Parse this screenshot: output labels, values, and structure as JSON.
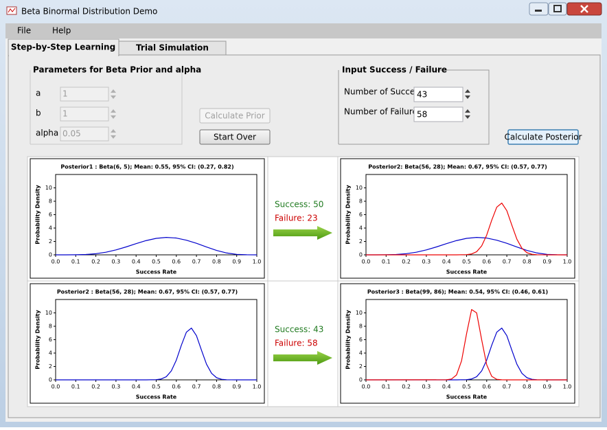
{
  "window": {
    "title": "Beta Binormal Distribution Demo"
  },
  "menu": [
    "File",
    "Help"
  ],
  "tabs": [
    "Step-by-Step Learning",
    "Trial Simulation"
  ],
  "prior_group": {
    "title": "Parameters for Beta Prior and alpha",
    "fields": [
      {
        "label": "a",
        "value": "1"
      },
      {
        "label": "b",
        "value": "1"
      },
      {
        "label": "alpha",
        "value": "0.05"
      }
    ]
  },
  "buttons": {
    "calculate_prior": "Calculate Prior",
    "start_over": "Start Over",
    "calculate_posterior": "Calculate Posterior"
  },
  "input_group": {
    "title": "Input Success / Failure",
    "fields": [
      {
        "label": "Number of Success",
        "value": "43"
      },
      {
        "label": "Number of Failure",
        "value": "58"
      }
    ]
  },
  "transitions": [
    {
      "success": "Success: 50",
      "failure": "Failure: 23"
    },
    {
      "success": "Success: 43",
      "failure": "Failure: 58"
    }
  ],
  "chart_data": [
    {
      "type": "line",
      "title": "Posterior1 : Beta(6, 5); Mean: 0.55, 95% CI: (0.27, 0.82)",
      "xlabel": "Success Rate",
      "ylabel": "Probability Density",
      "xlim": [
        0,
        1
      ],
      "ylim": [
        0,
        12
      ],
      "xticks": [
        {
          "value": 0,
          "label": "0.0"
        },
        0.1,
        0.2,
        0.3,
        0.4,
        0.5,
        0.6,
        0.7,
        0.8,
        0.9,
        {
          "value": 1,
          "label": "1.0"
        }
      ],
      "yticks": [
        0,
        2,
        4,
        6,
        8,
        10
      ],
      "series": [
        {
          "color": "#0000cc",
          "x": [
            0,
            0.05,
            0.1,
            0.15,
            0.2,
            0.25,
            0.3,
            0.35,
            0.4,
            0.45,
            0.5,
            0.55,
            0.6,
            0.65,
            0.7,
            0.75,
            0.8,
            0.85,
            0.9,
            0.95,
            1
          ],
          "values": [
            0,
            0,
            0.01,
            0.05,
            0.17,
            0.39,
            0.74,
            1.18,
            1.67,
            2.13,
            2.46,
            2.6,
            2.51,
            2.19,
            1.72,
            1.17,
            0.66,
            0.28,
            0.07,
            0.01,
            0
          ]
        }
      ]
    },
    {
      "type": "line",
      "title": "Posterior2: Beta(56, 28); Mean: 0.67, 95% CI: (0.57, 0.77)",
      "xlabel": "Success Rate",
      "ylabel": "Probability Density",
      "xlim": [
        0,
        1
      ],
      "ylim": [
        0,
        12
      ],
      "xticks": [
        {
          "value": 0,
          "label": "0.0"
        },
        0.1,
        0.2,
        0.3,
        0.4,
        0.5,
        0.6,
        0.7,
        0.8,
        0.9,
        {
          "value": 1,
          "label": "1.0"
        }
      ],
      "yticks": [
        0,
        2,
        4,
        6,
        8,
        10
      ],
      "series": [
        {
          "color": "#0000cc",
          "x": [
            0,
            0.05,
            0.1,
            0.15,
            0.2,
            0.25,
            0.3,
            0.35,
            0.4,
            0.45,
            0.5,
            0.55,
            0.6,
            0.65,
            0.7,
            0.75,
            0.8,
            0.85,
            0.9,
            0.95,
            1
          ],
          "values": [
            0,
            0,
            0.01,
            0.05,
            0.17,
            0.39,
            0.74,
            1.18,
            1.67,
            2.13,
            2.46,
            2.6,
            2.51,
            2.19,
            1.72,
            1.17,
            0.66,
            0.28,
            0.07,
            0.01,
            0
          ]
        },
        {
          "color": "#ee0000",
          "x": [
            0,
            0.45,
            0.5,
            0.525,
            0.55,
            0.575,
            0.6,
            0.625,
            0.65,
            0.675,
            0.7,
            0.725,
            0.75,
            0.775,
            0.8,
            0.825,
            0.85,
            0.9,
            1
          ],
          "values": [
            0,
            0,
            0.03,
            0.13,
            0.47,
            1.33,
            2.95,
            5.17,
            7.12,
            7.73,
            6.6,
            4.43,
            2.34,
            0.98,
            0.32,
            0.08,
            0.02,
            0,
            0
          ]
        }
      ]
    },
    {
      "type": "line",
      "title": "Posterior2 : Beta(56, 28); Mean: 0.67, 95% CI: (0.57, 0.77)",
      "xlabel": "Success Rate",
      "ylabel": "Probability Density",
      "xlim": [
        0,
        1
      ],
      "ylim": [
        0,
        12
      ],
      "xticks": [
        {
          "value": 0,
          "label": "0.0"
        },
        0.1,
        0.2,
        0.3,
        0.4,
        0.5,
        0.6,
        0.7,
        0.8,
        0.9,
        {
          "value": 1,
          "label": "1.0"
        }
      ],
      "yticks": [
        0,
        2,
        4,
        6,
        8,
        10
      ],
      "series": [
        {
          "color": "#0000cc",
          "x": [
            0,
            0.45,
            0.5,
            0.525,
            0.55,
            0.575,
            0.6,
            0.625,
            0.65,
            0.675,
            0.7,
            0.725,
            0.75,
            0.775,
            0.8,
            0.825,
            0.85,
            0.9,
            1
          ],
          "values": [
            0,
            0,
            0.03,
            0.13,
            0.47,
            1.33,
            2.95,
            5.17,
            7.12,
            7.73,
            6.6,
            4.43,
            2.34,
            0.98,
            0.32,
            0.08,
            0.02,
            0,
            0
          ]
        }
      ]
    },
    {
      "type": "line",
      "title": "Posterior3 : Beta(99, 86); Mean: 0.54, 95% CI: (0.46, 0.61)",
      "xlabel": "Success Rate",
      "ylabel": "Probability Density",
      "xlim": [
        0,
        1
      ],
      "ylim": [
        0,
        12
      ],
      "xticks": [
        {
          "value": 0,
          "label": "0.0"
        },
        0.1,
        0.2,
        0.3,
        0.4,
        0.5,
        0.6,
        0.7,
        0.8,
        0.9,
        {
          "value": 1,
          "label": "1.0"
        }
      ],
      "yticks": [
        0,
        2,
        4,
        6,
        8,
        10
      ],
      "series": [
        {
          "color": "#0000cc",
          "x": [
            0,
            0.45,
            0.5,
            0.525,
            0.55,
            0.575,
            0.6,
            0.625,
            0.65,
            0.675,
            0.7,
            0.725,
            0.75,
            0.775,
            0.8,
            0.825,
            0.85,
            0.9,
            1
          ],
          "values": [
            0,
            0,
            0.03,
            0.13,
            0.47,
            1.33,
            2.95,
            5.17,
            7.12,
            7.73,
            6.6,
            4.43,
            2.34,
            0.98,
            0.32,
            0.08,
            0.02,
            0,
            0
          ]
        },
        {
          "color": "#ee0000",
          "x": [
            0,
            0.4,
            0.425,
            0.45,
            0.475,
            0.5,
            0.525,
            0.55,
            0.575,
            0.6,
            0.625,
            0.65,
            0.675,
            0.7,
            1
          ],
          "values": [
            0,
            0.01,
            0.12,
            0.73,
            2.84,
            6.9,
            10.5,
            10,
            5.99,
            2.25,
            0.53,
            0.08,
            0.01,
            0,
            0
          ]
        }
      ]
    }
  ]
}
